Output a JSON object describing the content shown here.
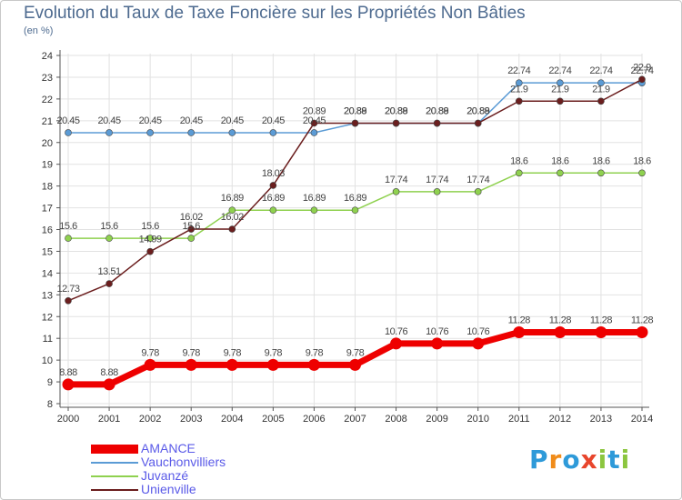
{
  "title": "Evolution du Taux de Taxe Foncière sur les Propriétés Non Bâties",
  "subtitle": "(en %)",
  "logo": {
    "text": "Proxiti",
    "letters": [
      "P",
      "r",
      "o",
      "x",
      "i",
      "t",
      "i"
    ],
    "colors": [
      "#2e9ad9",
      "#f08c1a",
      "#2e9ad9",
      "#e8452c",
      "#8cc63f",
      "#2e9ad9",
      "#8cc63f"
    ]
  },
  "chart_data": {
    "type": "line",
    "title": "Evolution du Taux de Taxe Foncière sur les Propriétés Non Bâties",
    "ylabel": "(en %)",
    "xlabel": "",
    "ylim": [
      8,
      24
    ],
    "grid": true,
    "legend": "bottom-left",
    "yticks": [
      "8",
      "9",
      "10",
      "11",
      "12",
      "13",
      "14",
      "15",
      "16",
      "17",
      "18",
      "19",
      "20",
      "21",
      "22",
      "23",
      "24"
    ],
    "categories": [
      "2000",
      "2001",
      "2002",
      "2003",
      "2004",
      "2005",
      "2006",
      "2007",
      "2008",
      "2009",
      "2010",
      "2011",
      "2012",
      "2013",
      "2014"
    ],
    "series": [
      {
        "name": "Vauchonvilliers",
        "color": "#5b9bd5",
        "values": [
          20.45,
          20.45,
          20.45,
          20.45,
          20.45,
          20.45,
          20.45,
          20.88,
          20.88,
          20.88,
          20.88,
          22.74,
          22.74,
          22.74,
          22.74
        ],
        "labels": [
          "20.45",
          "20.45",
          "20.45",
          "20.45",
          "20.45",
          "20.45",
          "20.45",
          "20.88",
          "20.88",
          "20.88",
          "20.88",
          "22.74",
          "22.74",
          "22.74",
          "22.74"
        ]
      },
      {
        "name": "Juvanzé",
        "color": "#8fd14f",
        "values": [
          15.6,
          15.6,
          15.6,
          15.6,
          16.89,
          16.89,
          16.89,
          16.89,
          17.74,
          17.74,
          17.74,
          18.6,
          18.6,
          18.6,
          18.6
        ],
        "labels": [
          "15.6",
          "15.6",
          "15.6",
          "15.6",
          "16.89",
          "16.89",
          "16.89",
          "16.89",
          "17.74",
          "17.74",
          "17.74",
          "18.6",
          "18.6",
          "18.6",
          "18.6"
        ]
      },
      {
        "name": "Unienville",
        "color": "#6b1e1e",
        "values": [
          12.73,
          13.51,
          14.99,
          16.02,
          16.02,
          18.03,
          20.89,
          20.89,
          20.89,
          20.89,
          20.89,
          21.9,
          21.9,
          21.9,
          22.9
        ],
        "labels": [
          "12.73",
          "13.51",
          "14.99",
          "16.02",
          "16.02",
          "18.03",
          "20.89",
          "20.89",
          "20.89",
          "20.89",
          "20.89",
          "21.9",
          "21.9",
          "21.9",
          "22.9"
        ]
      },
      {
        "name": "AMANCE",
        "color": "#ee0000",
        "values": [
          8.88,
          8.88,
          9.78,
          9.78,
          9.78,
          9.78,
          9.78,
          9.78,
          10.76,
          10.76,
          10.76,
          11.28,
          11.28,
          11.28,
          11.28
        ],
        "labels": [
          "8.88",
          "8.88",
          "9.78",
          "9.78",
          "9.78",
          "9.78",
          "9.78",
          "9.78",
          "10.76",
          "10.76",
          "10.76",
          "11.28",
          "11.28",
          "11.28",
          "11.28"
        ]
      }
    ]
  },
  "legend": {
    "items": [
      {
        "name": "AMANCE",
        "color": "#ee0000",
        "thick": true
      },
      {
        "name": "Vauchonvilliers",
        "color": "#5b9bd5",
        "thick": false
      },
      {
        "name": "Juvanzé",
        "color": "#8fd14f",
        "thick": false
      },
      {
        "name": "Unienville",
        "color": "#6b1e1e",
        "thick": false
      }
    ]
  }
}
